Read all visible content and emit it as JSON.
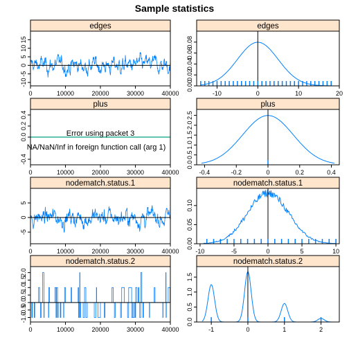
{
  "title": "Sample statistics",
  "error": {
    "line1": "Error using packet 3",
    "line2": "NA/NaN/Inf in foreign function call (arg 1)"
  },
  "colors": {
    "trace": "#0080ff",
    "density": "#0080ff",
    "error_line": "#00a080",
    "strip": "#ffe5cc"
  },
  "chart_data": [
    {
      "type": "line",
      "title": "edges",
      "xlim": [
        0,
        40000
      ],
      "xticks": [
        0,
        10000,
        20000,
        30000,
        40000
      ],
      "ylim": [
        -12,
        20
      ],
      "yticks": [
        -10,
        -5,
        0,
        5,
        10,
        15
      ],
      "yticklabels": [
        "-10",
        "-5",
        "0",
        "5",
        "10",
        "15"
      ],
      "mean_line": 0,
      "range": [
        -10,
        15
      ],
      "signal": "continuous"
    },
    {
      "type": "area",
      "title": "edges",
      "xlim": [
        -15,
        20
      ],
      "xticks": [
        -10,
        0,
        10,
        20
      ],
      "ylim": [
        0,
        0.1
      ],
      "yticks": [
        0,
        0.02,
        0.04,
        0.06,
        0.08
      ],
      "yticklabels": [
        "0.00",
        "0.02",
        "0.04",
        "0.06",
        "0.08"
      ],
      "vline": 0,
      "rug": "integers",
      "density": {
        "kind": "normal",
        "mean": 0,
        "sd": 5,
        "x_from": -14,
        "x_to": 18
      }
    },
    {
      "type": "line",
      "title": "plus",
      "xlim": [
        0,
        40000
      ],
      "xticks": [
        0,
        10000,
        20000,
        30000,
        40000
      ],
      "ylim": [
        -0.5,
        0.5
      ],
      "yticks": [
        -0.4,
        0,
        0.2,
        0.4
      ],
      "yticklabels": [
        "-0.4",
        "0.0",
        "0.2",
        "0.4"
      ],
      "error_line": 0,
      "error": true
    },
    {
      "type": "area",
      "title": "plus",
      "xlim": [
        -0.45,
        0.45
      ],
      "xticks": [
        -0.4,
        -0.2,
        0,
        0.2,
        0.4
      ],
      "ylim": [
        0,
        2.8
      ],
      "yticks": [
        0,
        0.5,
        1,
        1.5,
        2,
        2.5
      ],
      "yticklabels": [
        "0.0",
        "0.5",
        "1.0",
        "1.5",
        "2.0",
        "2.5"
      ],
      "vline": 0,
      "rug": [
        0
      ],
      "density": {
        "kind": "normal",
        "mean": 0,
        "sd": 0.16,
        "x_from": -0.42,
        "x_to": 0.42
      }
    },
    {
      "type": "line",
      "title": "nodematch.status.1",
      "xlim": [
        0,
        40000
      ],
      "xticks": [
        0,
        10000,
        20000,
        30000,
        40000
      ],
      "ylim": [
        -9,
        10
      ],
      "yticks": [
        -5,
        0,
        5
      ],
      "yticklabels": [
        "-5",
        "0",
        "5"
      ],
      "mean_line": 0,
      "range": [
        -7,
        9
      ],
      "signal": "continuous"
    },
    {
      "type": "area",
      "title": "nodematch.status.1",
      "xlim": [
        -10.5,
        10.5
      ],
      "xticks": [
        -10,
        -5,
        0,
        5,
        10
      ],
      "ylim": [
        0,
        0.145
      ],
      "yticks": [
        0,
        0.05,
        0.1
      ],
      "yticklabels": [
        "0.00",
        "0.05",
        "0.10"
      ],
      "vline": 0,
      "rug": "integers",
      "density": {
        "kind": "normal",
        "mean": 0,
        "sd": 3,
        "x_from": -9.5,
        "x_to": 10,
        "jitter": 0.01
      }
    },
    {
      "type": "line",
      "title": "nodematch.status.2",
      "xlim": [
        0,
        40000
      ],
      "xticks": [
        0,
        10000,
        20000,
        30000,
        40000
      ],
      "ylim": [
        -1.3,
        2.4
      ],
      "yticks": [
        -1,
        -0.5,
        0,
        0.5,
        1,
        1.5,
        2
      ],
      "yticklabels": [
        "-1.0",
        "-0.5",
        "0.0",
        "0.5",
        "1.0",
        "1.5",
        "2.0"
      ],
      "mean_line": 0,
      "signal": "discrete",
      "levels": [
        -1,
        0,
        1,
        2
      ]
    },
    {
      "type": "area",
      "title": "nodematch.status.2",
      "xlim": [
        -1.4,
        2.5
      ],
      "xticks": [
        -1,
        0,
        1,
        2
      ],
      "ylim": [
        0,
        1.85
      ],
      "yticks": [
        0,
        0.5,
        1,
        1.5
      ],
      "yticklabels": [
        "0.0",
        "0.5",
        "1.0",
        "1.5"
      ],
      "vline": 0,
      "rug": [
        -1,
        0,
        1,
        2
      ],
      "density": {
        "kind": "mixture",
        "x_from": -1.25,
        "x_to": 2.3,
        "components": [
          {
            "mean": -1,
            "sd": 0.09,
            "height": 1.25
          },
          {
            "mean": 0,
            "sd": 0.09,
            "height": 1.68
          },
          {
            "mean": 1,
            "sd": 0.09,
            "height": 0.62
          },
          {
            "mean": 2,
            "sd": 0.09,
            "height": 0.12
          }
        ]
      }
    }
  ]
}
